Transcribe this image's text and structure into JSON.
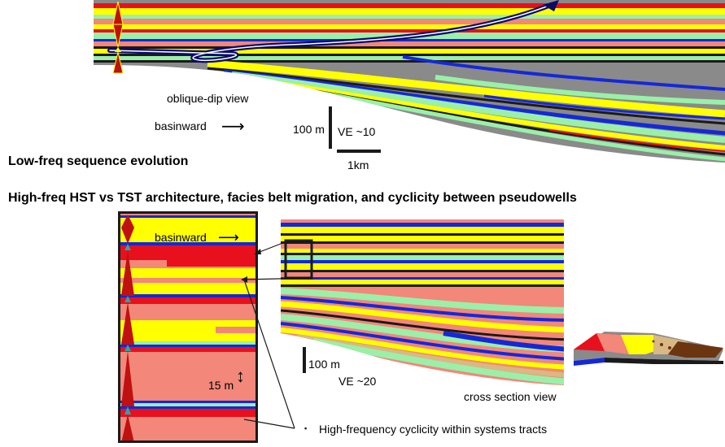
{
  "top_panel": {
    "view_label": "oblique-dip view",
    "direction_label": "basinward",
    "vertical_scale_label": "100 m",
    "ve_label": "VE ~10",
    "horizontal_scale_label": "1km"
  },
  "headings": {
    "low_freq": "Low-freq sequence evolution",
    "high_freq": "High-freq HST vs TST architecture, facies belt migration, and cyclicity between pseudowells"
  },
  "pseudowell": {
    "direction_label": "basinward",
    "scale_label": "15 m"
  },
  "cross_section": {
    "scale_label": "100 m",
    "ve_label": "VE ~20",
    "view_label": "cross section view"
  },
  "caption": {
    "bullet": "▪",
    "text": "High-frequency cyclicity within systems tracts"
  },
  "colors": {
    "red": "#e8101c",
    "salmon": "#f2877a",
    "yellow": "#ffff00",
    "lightgreen": "#9af0a8",
    "blue": "#1528d8",
    "grey": "#8a8a8a",
    "black": "#1a1a1a",
    "tan": "#d9b884",
    "brown": "#6b3510",
    "navy": "#0a0a6a",
    "teal": "#2aa6a6",
    "darkred": "#c01010"
  }
}
